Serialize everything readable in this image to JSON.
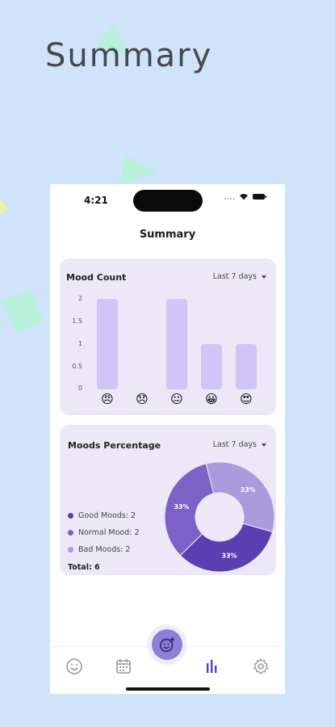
{
  "hero": {
    "title": "Summary"
  },
  "status": {
    "time": "4:21"
  },
  "screen": {
    "title": "Summary"
  },
  "mood_count": {
    "title": "Mood Count",
    "range_label": "Last 7 days",
    "y_ticks": [
      "2",
      "1.5",
      "1",
      "0.5",
      "0"
    ]
  },
  "moods_percentage": {
    "title": "Moods Percentage",
    "range_label": "Last 7 days",
    "legend": [
      {
        "label": "Good Moods: 2",
        "color": "#5a3fb3"
      },
      {
        "label": "Normal Mood: 2",
        "color": "#7a62c6"
      },
      {
        "label": "Bad Moods: 2",
        "color": "#a99bdc"
      }
    ],
    "total": "Total: 6"
  },
  "chart_data": [
    {
      "type": "bar",
      "categories": [
        "😠",
        "😞",
        "😐",
        "😀",
        "😍"
      ],
      "values": [
        2,
        0,
        2,
        1,
        1
      ],
      "title": "Mood Count",
      "xlabel": "",
      "ylabel": "",
      "ylim": [
        0,
        2
      ],
      "color": "#cfc5f7"
    },
    {
      "type": "pie",
      "categories": [
        "Good Moods",
        "Normal Mood",
        "Bad Moods"
      ],
      "values": [
        2,
        2,
        2
      ],
      "labels": [
        "33%",
        "33%",
        "33%"
      ],
      "colors": [
        "#5a3fb3",
        "#7a62c6",
        "#a99bdc"
      ],
      "title": "Moods Percentage"
    }
  ],
  "nav": {
    "items": [
      "mood-face-icon",
      "calendar-icon",
      "add-mood-icon",
      "bar-chart-icon",
      "gear-icon"
    ],
    "active_color": "#5a3fb3",
    "inactive_color": "#9a9a9a"
  },
  "colors": {
    "background": "#cfe3fb",
    "card": "#ece8f7",
    "accent": "#5a3fb3",
    "bar": "#cfc5f7"
  }
}
